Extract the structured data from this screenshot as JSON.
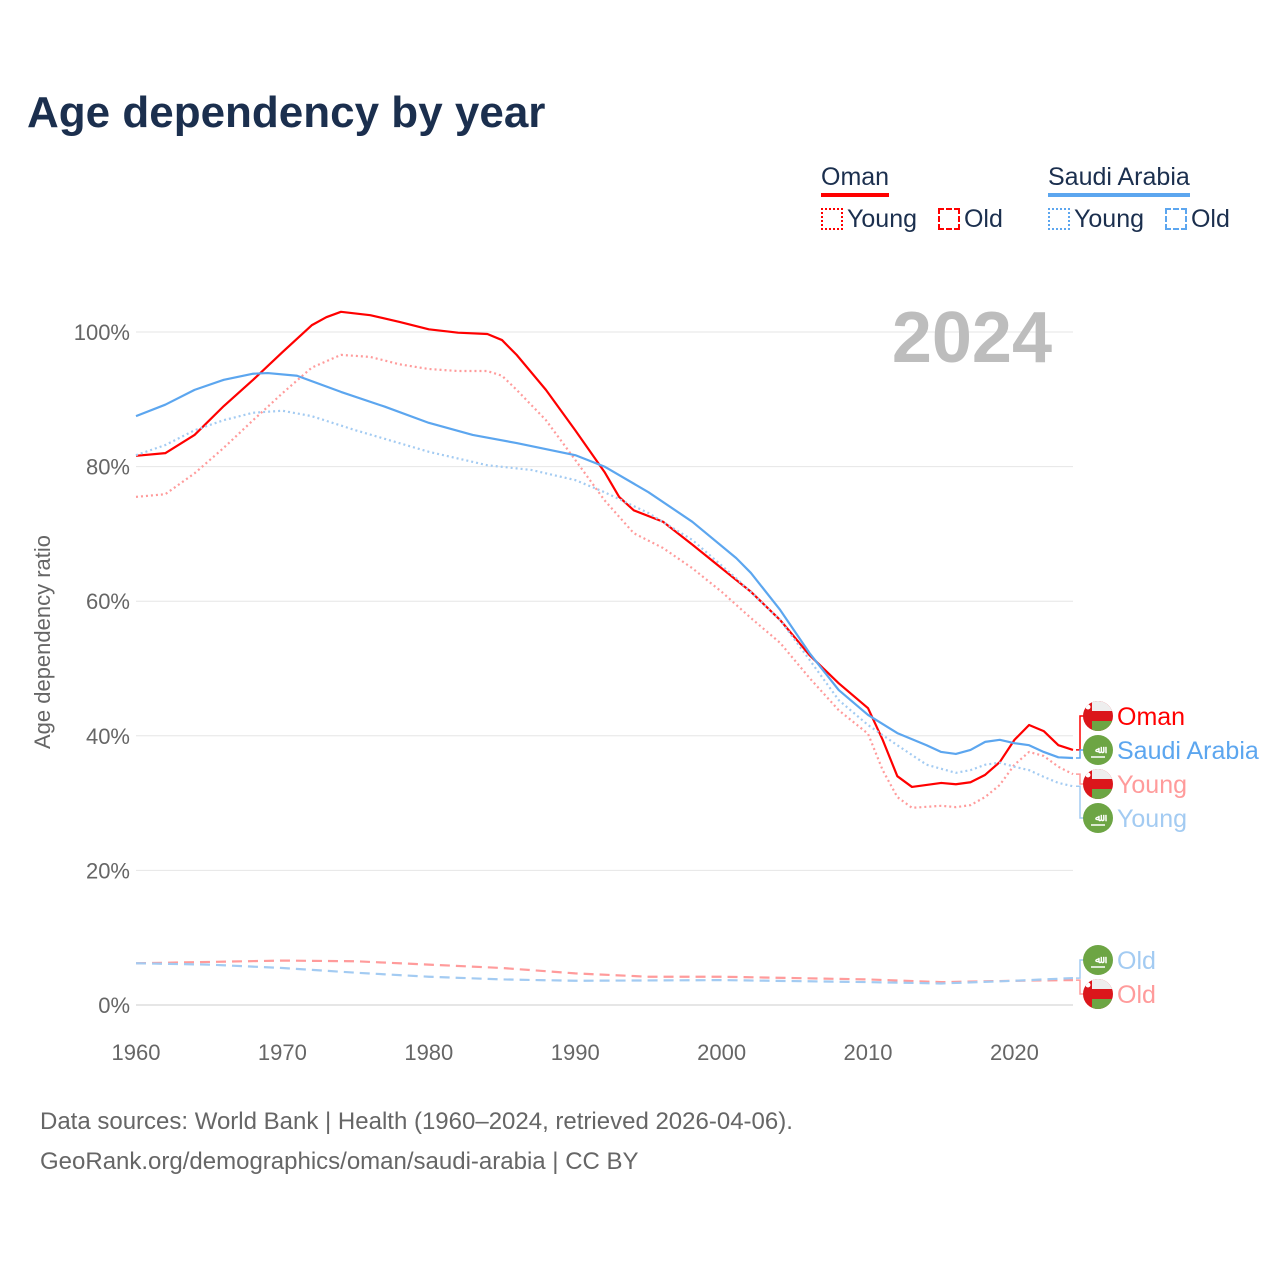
{
  "title": "Age dependency by year",
  "legend": {
    "oman": "Oman",
    "saudi": "Saudi Arabia",
    "young": "Young",
    "old": "Old"
  },
  "year_label": "2024",
  "footer": {
    "line1": "Data sources: World Bank | Health (1960–2024, retrieved 2026-04-06).",
    "line2": "GeoRank.org/demographics/oman/saudi-arabia | CC BY"
  },
  "colors": {
    "oman": "#ff0000",
    "oman_light": "#ff9b9b",
    "saudi": "#5ca6ef",
    "saudi_light": "#a3cbf2"
  },
  "chart_data": {
    "type": "line",
    "title": "Age dependency by year",
    "ylabel": "Age dependency ratio",
    "xlim": [
      1960,
      2024
    ],
    "ylim": [
      0,
      110
    ],
    "xticks": [
      1960,
      1970,
      1980,
      1990,
      2000,
      2010,
      2020
    ],
    "yticks": [
      0,
      20,
      40,
      60,
      80,
      100
    ],
    "ytick_labels": [
      "0%",
      "20%",
      "40%",
      "60%",
      "80%",
      "100%"
    ],
    "end_labels": [
      "Oman",
      "Saudi Arabia",
      "Young",
      "Young",
      "Old",
      "Old"
    ],
    "series": [
      {
        "name": "Oman",
        "key": "oman_total",
        "style": "solid",
        "color": "#ff0000",
        "points": [
          [
            1960,
            81.6
          ],
          [
            1962,
            82
          ],
          [
            1964,
            84.7
          ],
          [
            1966,
            89
          ],
          [
            1968,
            92.9
          ],
          [
            1970,
            97
          ],
          [
            1972,
            101
          ],
          [
            1973,
            102.2
          ],
          [
            1974,
            103
          ],
          [
            1976,
            102.5
          ],
          [
            1978,
            101.5
          ],
          [
            1980,
            100.4
          ],
          [
            1982,
            99.9
          ],
          [
            1984,
            99.7
          ],
          [
            1985,
            98.8
          ],
          [
            1986,
            96.6
          ],
          [
            1988,
            91.4
          ],
          [
            1990,
            85.4
          ],
          [
            1992,
            79.2
          ],
          [
            1993,
            75.5
          ],
          [
            1994,
            73.5
          ],
          [
            1996,
            71.8
          ],
          [
            1998,
            68.4
          ],
          [
            2000,
            64.9
          ],
          [
            2002,
            61.4
          ],
          [
            2004,
            57.2
          ],
          [
            2006,
            52
          ],
          [
            2008,
            47.8
          ],
          [
            2010,
            44.1
          ],
          [
            2011,
            39.4
          ],
          [
            2012,
            34
          ],
          [
            2013,
            32.4
          ],
          [
            2015,
            33
          ],
          [
            2016,
            32.8
          ],
          [
            2017,
            33.1
          ],
          [
            2018,
            34.2
          ],
          [
            2019,
            36.1
          ],
          [
            2020,
            39.4
          ],
          [
            2021,
            41.6
          ],
          [
            2022,
            40.7
          ],
          [
            2023,
            38.6
          ],
          [
            2024,
            37.9
          ]
        ]
      },
      {
        "name": "Oman Young",
        "key": "oman_young",
        "style": "dotted",
        "color": "#ff9b9b",
        "points": [
          [
            1960,
            75.5
          ],
          [
            1962,
            75.9
          ],
          [
            1964,
            79
          ],
          [
            1966,
            82.8
          ],
          [
            1968,
            86.9
          ],
          [
            1970,
            90.9
          ],
          [
            1972,
            94.7
          ],
          [
            1974,
            96.6
          ],
          [
            1976,
            96.3
          ],
          [
            1978,
            95.2
          ],
          [
            1980,
            94.5
          ],
          [
            1982,
            94.2
          ],
          [
            1984,
            94.2
          ],
          [
            1985,
            93.5
          ],
          [
            1986,
            91.4
          ],
          [
            1988,
            86.9
          ],
          [
            1990,
            81
          ],
          [
            1992,
            75
          ],
          [
            1994,
            70.1
          ],
          [
            1996,
            67.9
          ],
          [
            1998,
            64.9
          ],
          [
            2000,
            61.4
          ],
          [
            2002,
            57.5
          ],
          [
            2004,
            53.8
          ],
          [
            2006,
            48.6
          ],
          [
            2008,
            43.8
          ],
          [
            2010,
            40.3
          ],
          [
            2011,
            34.9
          ],
          [
            2012,
            30.9
          ],
          [
            2013,
            29.3
          ],
          [
            2015,
            29.6
          ],
          [
            2016,
            29.4
          ],
          [
            2017,
            29.7
          ],
          [
            2018,
            30.9
          ],
          [
            2019,
            32.7
          ],
          [
            2020,
            35.7
          ],
          [
            2021,
            37.6
          ],
          [
            2022,
            37
          ],
          [
            2023,
            35.4
          ],
          [
            2024,
            34.3
          ]
        ]
      },
      {
        "name": "Oman Old",
        "key": "oman_old",
        "style": "dashed",
        "color": "#ff9b9b",
        "points": [
          [
            1960,
            6.2
          ],
          [
            1965,
            6.4
          ],
          [
            1970,
            6.6
          ],
          [
            1975,
            6.5
          ],
          [
            1980,
            6
          ],
          [
            1985,
            5.5
          ],
          [
            1990,
            4.7
          ],
          [
            1995,
            4.2
          ],
          [
            2000,
            4.2
          ],
          [
            2005,
            4
          ],
          [
            2010,
            3.8
          ],
          [
            2015,
            3.4
          ],
          [
            2020,
            3.6
          ],
          [
            2024,
            3.7
          ]
        ]
      },
      {
        "name": "Saudi Arabia",
        "key": "saudi_total",
        "style": "solid",
        "color": "#5ca6ef",
        "points": [
          [
            1960,
            87.5
          ],
          [
            1962,
            89.2
          ],
          [
            1964,
            91.4
          ],
          [
            1966,
            92.9
          ],
          [
            1968,
            93.8
          ],
          [
            1969,
            93.9
          ],
          [
            1971,
            93.5
          ],
          [
            1974,
            91.1
          ],
          [
            1977,
            88.9
          ],
          [
            1980,
            86.5
          ],
          [
            1983,
            84.7
          ],
          [
            1986,
            83.5
          ],
          [
            1990,
            81.7
          ],
          [
            1992,
            80
          ],
          [
            1995,
            76.2
          ],
          [
            1998,
            71.8
          ],
          [
            2001,
            66.4
          ],
          [
            2002,
            64.2
          ],
          [
            2004,
            58.7
          ],
          [
            2006,
            52.3
          ],
          [
            2008,
            46.8
          ],
          [
            2010,
            43.1
          ],
          [
            2012,
            40.4
          ],
          [
            2014,
            38.6
          ],
          [
            2015,
            37.6
          ],
          [
            2016,
            37.3
          ],
          [
            2017,
            37.9
          ],
          [
            2018,
            39.1
          ],
          [
            2019,
            39.4
          ],
          [
            2020,
            38.9
          ],
          [
            2021,
            38.6
          ],
          [
            2022,
            37.6
          ],
          [
            2023,
            36.8
          ],
          [
            2024,
            36.7
          ]
        ]
      },
      {
        "name": "Saudi Arabia Young",
        "key": "saudi_young",
        "style": "dotted",
        "color": "#a3cbf2",
        "points": [
          [
            1960,
            81.7
          ],
          [
            1962,
            83.2
          ],
          [
            1964,
            85.4
          ],
          [
            1966,
            86.9
          ],
          [
            1968,
            88
          ],
          [
            1970,
            88.3
          ],
          [
            1972,
            87.5
          ],
          [
            1975,
            85.4
          ],
          [
            1980,
            82.2
          ],
          [
            1984,
            80.2
          ],
          [
            1987,
            79.5
          ],
          [
            1990,
            78
          ],
          [
            1992,
            76.2
          ],
          [
            1995,
            73.1
          ],
          [
            1998,
            69.1
          ],
          [
            2001,
            63.4
          ],
          [
            2004,
            57.2
          ],
          [
            2006,
            51.3
          ],
          [
            2008,
            45.3
          ],
          [
            2010,
            41.6
          ],
          [
            2012,
            38.6
          ],
          [
            2014,
            35.7
          ],
          [
            2016,
            34.5
          ],
          [
            2017,
            34.9
          ],
          [
            2018,
            35.7
          ],
          [
            2019,
            36
          ],
          [
            2020,
            35.4
          ],
          [
            2021,
            34.9
          ],
          [
            2022,
            33.9
          ],
          [
            2023,
            33
          ],
          [
            2024,
            32.5
          ]
        ]
      },
      {
        "name": "Saudi Arabia Old",
        "key": "saudi_old",
        "style": "dashed",
        "color": "#a3cbf2",
        "points": [
          [
            1960,
            6.2
          ],
          [
            1965,
            6
          ],
          [
            1970,
            5.5
          ],
          [
            1975,
            4.8
          ],
          [
            1980,
            4.2
          ],
          [
            1985,
            3.8
          ],
          [
            1990,
            3.6
          ],
          [
            2000,
            3.7
          ],
          [
            2010,
            3.4
          ],
          [
            2015,
            3.2
          ],
          [
            2020,
            3.6
          ],
          [
            2024,
            4
          ]
        ]
      }
    ]
  }
}
